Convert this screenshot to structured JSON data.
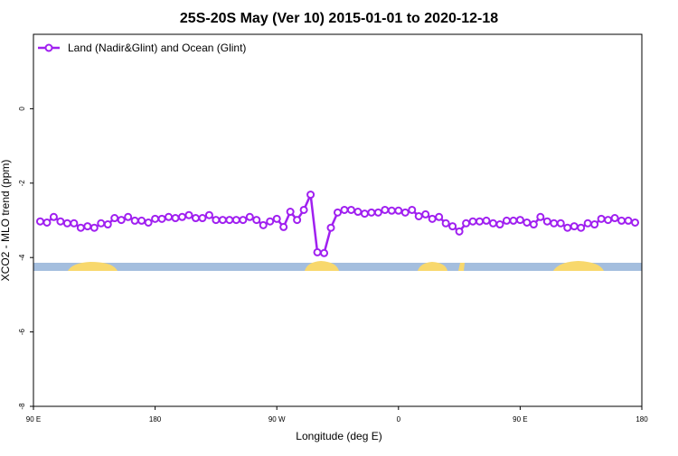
{
  "chart_data": {
    "type": "line",
    "title": "25S-20S May (Ver 10)   2015-01-01 to 2020-12-18",
    "xlabel": "Longitude (deg E)",
    "ylabel": "XCO2 - MLO trend (ppm)",
    "xlim": [
      90,
      540
    ],
    "ylim": [
      -8,
      2
    ],
    "xticks": [
      {
        "value": 90,
        "label": "90 E"
      },
      {
        "value": 180,
        "label": "180"
      },
      {
        "value": 270,
        "label": "90 W"
      },
      {
        "value": 360,
        "label": "0"
      },
      {
        "value": 450,
        "label": "90 E"
      },
      {
        "value": 540,
        "label": "180"
      }
    ],
    "yticks": [
      -8,
      -6,
      -4,
      -2,
      0
    ],
    "legend": "upper left",
    "x": [
      95,
      100,
      105,
      110,
      115,
      120,
      125,
      130,
      135,
      140,
      145,
      150,
      155,
      160,
      165,
      170,
      175,
      180,
      185,
      190,
      195,
      200,
      205,
      210,
      215,
      220,
      225,
      230,
      235,
      240,
      245,
      250,
      255,
      260,
      265,
      270,
      275,
      280,
      285,
      290,
      295,
      300,
      305,
      310,
      315,
      320,
      325,
      330,
      335,
      340,
      345,
      350,
      355,
      360,
      365,
      370,
      375,
      380,
      385,
      390,
      395,
      400,
      405,
      410,
      415,
      420,
      425,
      430,
      435,
      440,
      445,
      450,
      455,
      460,
      465,
      470,
      475,
      480,
      485,
      490,
      495,
      500,
      505,
      510,
      515,
      520,
      525,
      530,
      535
    ],
    "series": [
      {
        "name": "Land (Nadir&Glint) and Ocean (Glint)",
        "color": "#a020f0",
        "values": [
          -3.03,
          -3.06,
          -2.91,
          -3.03,
          -3.08,
          -3.08,
          -3.2,
          -3.16,
          -3.2,
          -3.08,
          -3.11,
          -2.94,
          -2.99,
          -2.91,
          -3.01,
          -3.01,
          -3.06,
          -2.96,
          -2.96,
          -2.91,
          -2.94,
          -2.91,
          -2.86,
          -2.94,
          -2.94,
          -2.86,
          -2.99,
          -2.99,
          -2.99,
          -2.99,
          -2.99,
          -2.91,
          -2.99,
          -3.13,
          -3.03,
          -2.96,
          -3.18,
          -2.77,
          -2.99,
          -2.72,
          -2.31,
          -3.86,
          -3.88,
          -3.2,
          -2.79,
          -2.72,
          -2.72,
          -2.77,
          -2.82,
          -2.79,
          -2.79,
          -2.72,
          -2.74,
          -2.74,
          -2.79,
          -2.72,
          -2.89,
          -2.84,
          -2.96,
          -2.91,
          -3.08,
          -3.16,
          -3.3,
          -3.08,
          -3.03,
          -3.03,
          -3.01,
          -3.08,
          -3.11,
          -3.01,
          -3.01,
          -2.99,
          -3.06,
          -3.11,
          -2.91,
          -3.03,
          -3.08,
          -3.08,
          -3.2,
          -3.16,
          -3.2,
          -3.08,
          -3.11,
          -2.96,
          -2.99,
          -2.94,
          -3.01,
          -3.01,
          -3.06
        ]
      }
    ]
  }
}
